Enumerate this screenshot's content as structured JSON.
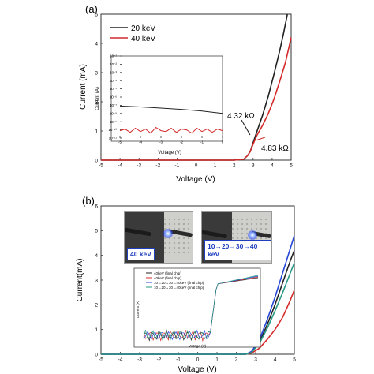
{
  "panels": [
    {
      "label": "(a)",
      "chart_data": {
        "type": "line",
        "xlabel": "Voltage (V)",
        "ylabel": "Current (mA)",
        "xlim": [
          -5,
          5
        ],
        "ylim": [
          0,
          5
        ],
        "xticks": [
          "-5",
          "-4",
          "-3",
          "-2",
          "-1",
          "0",
          "1",
          "2",
          "3",
          "4",
          "5"
        ],
        "yticks": [
          "0",
          "1",
          "2",
          "3",
          "4",
          "5"
        ],
        "legend_position": "top-left",
        "series": [
          {
            "name": "20 keV",
            "color": "#222222",
            "x": [
              -5,
              -2,
              0,
              2,
              2.5,
              2.7,
              2.85,
              3,
              3.2,
              3.5,
              3.8,
              4.1,
              4.4,
              4.6,
              4.8
            ],
            "y": [
              0,
              0,
              0,
              0,
              0.03,
              0.15,
              0.3,
              0.6,
              0.98,
              1.55,
              2.2,
              2.95,
              3.75,
              4.35,
              5.0
            ]
          },
          {
            "name": "40 keV",
            "color": "#d42a2a",
            "x": [
              -5,
              -2,
              0,
              2,
              2.5,
              2.7,
              2.85,
              3,
              3.2,
              3.5,
              3.8,
              4.1,
              4.4,
              4.7,
              5.0
            ],
            "y": [
              0,
              0,
              0,
              0,
              0.03,
              0.15,
              0.3,
              0.55,
              0.85,
              1.2,
              1.6,
              2.1,
              2.7,
              3.35,
              4.2
            ]
          }
        ],
        "annotations": [
          "4.32 kΩ",
          "4.83 kΩ"
        ],
        "inset": {
          "xlabel": "Voltage (V)",
          "ylabel": "Current (A)",
          "xlim": [
            -5,
            0
          ],
          "ylim_exp": [
            -11,
            -1
          ],
          "xticks": [
            "-5",
            "-4",
            "-3",
            "-2",
            "-1",
            "0"
          ],
          "yticks": [
            "10⁻¹",
            "10⁻²",
            "10⁻³",
            "10⁻⁴",
            "10⁻⁵",
            "10⁻⁶",
            "10⁻⁷",
            "10⁻⁸",
            "10⁻⁹",
            "10⁻¹⁰",
            "10⁻¹¹"
          ],
          "series": [
            {
              "name": "20 keV",
              "color": "#222222",
              "x": [
                -5,
                -4,
                -3,
                -2,
                -1,
                0
              ],
              "y_exp": [
                -7.1,
                -7.2,
                -7.35,
                -7.5,
                -7.7,
                -8.0
              ]
            },
            {
              "name": "40 keV",
              "color": "#d42a2a",
              "x": [
                -5,
                -4.75,
                -4.5,
                -4.25,
                -4,
                -3.75,
                -3.5,
                -3.25,
                -3,
                -2.75,
                -2.5,
                -2.25,
                -2,
                -1.75,
                -1.5,
                -1.25,
                -1,
                -0.75,
                -0.5,
                -0.25,
                0
              ],
              "y_exp": [
                -10.1,
                -9.9,
                -10.3,
                -9.8,
                -10.2,
                -9.9,
                -10.4,
                -9.7,
                -10.1,
                -10.2,
                -9.8,
                -10.3,
                -9.9,
                -10.0,
                -10.4,
                -9.8,
                -10.2,
                -9.9,
                -10.3,
                -9.9,
                -10.1
              ]
            }
          ]
        }
      }
    },
    {
      "label": "(b)",
      "chart_data": {
        "type": "line",
        "xlabel": "Voltage (V)",
        "ylabel": "Current(mA)",
        "xlim": [
          -5,
          5
        ],
        "ylim": [
          0,
          6
        ],
        "xticks": [
          "-5",
          "-4",
          "-3",
          "-2",
          "-1",
          "0",
          "1",
          "2",
          "3",
          "4",
          "5"
        ],
        "yticks": [
          "0",
          "1",
          "2",
          "3",
          "4",
          "5",
          "6"
        ],
        "series": [
          {
            "name": "40keV (final chip)",
            "color": "#222222",
            "x": [
              -5,
              0,
              2.5,
              2.8,
              3.2,
              3.6,
              4.0,
              4.4,
              4.8,
              5.0
            ],
            "y": [
              0,
              0,
              0,
              0.1,
              0.5,
              1.2,
              2.0,
              2.9,
              3.8,
              4.2
            ]
          },
          {
            "name": "40keV (final chip)",
            "color": "#d42a2a",
            "x": [
              -5,
              0,
              2.5,
              2.8,
              3.2,
              3.6,
              4.0,
              4.4,
              4.8,
              5.0
            ],
            "y": [
              0,
              0,
              0,
              0.05,
              0.25,
              0.6,
              1.0,
              1.5,
              2.2,
              2.6
            ]
          },
          {
            "name": "10→20→30→40keV (final chip)",
            "color": "#2545d8",
            "x": [
              -5,
              0,
              2.5,
              2.8,
              3.2,
              3.6,
              4.0,
              4.4,
              4.8,
              5.0
            ],
            "y": [
              0,
              0,
              0,
              0.12,
              0.6,
              1.4,
              2.3,
              3.3,
              4.3,
              4.8
            ]
          },
          {
            "name": "10→20→30→40keV (final chip)",
            "color": "#2a9a86",
            "x": [
              -5,
              0,
              2.5,
              2.8,
              3.2,
              3.6,
              4.0,
              4.4,
              4.8,
              5.0
            ],
            "y": [
              0,
              0,
              0,
              0.08,
              0.45,
              1.05,
              1.75,
              2.5,
              3.3,
              3.7
            ]
          }
        ],
        "photos": [
          "40 keV",
          "10→20→30→40 keV"
        ],
        "inset": {
          "xlabel": "Voltage (V)",
          "ylabel": "Current (A)",
          "xlim": [
            -5,
            5
          ],
          "ylim_exp": [
            -11,
            -2
          ],
          "legend": [
            "40keV (final chip)",
            "40keV (final chip)",
            "10→20→30→40keV (final chip)",
            "10→20→30→40keV (final chip)"
          ]
        }
      }
    }
  ]
}
